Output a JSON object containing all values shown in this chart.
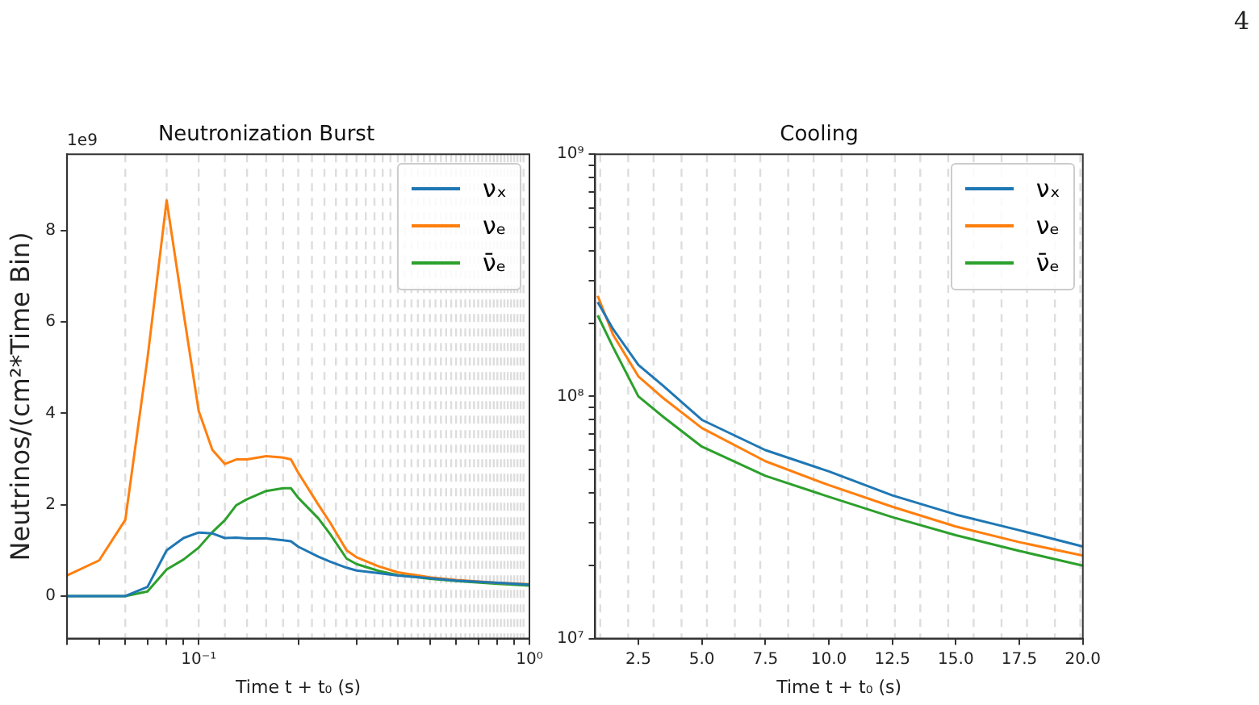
{
  "chart_data": [
    {
      "type": "line",
      "title": "Neutronization Burst",
      "xlabel": "Time t + t₀ (s)",
      "ylabel": "Neutrinos/(cm²*Time Bin)",
      "annotations": [
        "1e9"
      ],
      "log": "x",
      "legend": "top right",
      "x": [
        0.04,
        0.05,
        0.06,
        0.07,
        0.08,
        0.09,
        0.1,
        0.11,
        0.12,
        0.13,
        0.14,
        0.16,
        0.18,
        0.19,
        0.2,
        0.23,
        0.25,
        0.28,
        0.3,
        0.35,
        0.4,
        0.5,
        0.6,
        0.8,
        1.0
      ],
      "series": [
        {
          "name": "νₓ",
          "color": "#1f77b4",
          "values": [
            0,
            0,
            0,
            0.2,
            1.0,
            1.27,
            1.39,
            1.37,
            1.27,
            1.28,
            1.26,
            1.26,
            1.22,
            1.2,
            1.08,
            0.86,
            0.75,
            0.62,
            0.56,
            0.5,
            0.45,
            0.39,
            0.34,
            0.29,
            0.25
          ]
        },
        {
          "name": "νₑ",
          "color": "#ff7f0e",
          "values": [
            0.45,
            0.78,
            1.67,
            5.2,
            8.66,
            6.2,
            4.05,
            3.2,
            2.89,
            2.99,
            2.99,
            3.06,
            3.03,
            2.99,
            2.7,
            2.0,
            1.6,
            1.0,
            0.85,
            0.65,
            0.52,
            0.41,
            0.35,
            0.29,
            0.26
          ]
        },
        {
          "name": "ν̄ₑ",
          "color": "#2ca02c",
          "values": [
            0,
            0,
            0,
            0.1,
            0.58,
            0.8,
            1.06,
            1.4,
            1.66,
            1.99,
            2.12,
            2.3,
            2.36,
            2.36,
            2.15,
            1.7,
            1.35,
            0.82,
            0.7,
            0.55,
            0.46,
            0.38,
            0.33,
            0.27,
            0.23
          ]
        }
      ],
      "xlim": [
        0.04,
        1
      ],
      "xticks": [
        {
          "value": 0.04,
          "label": null
        },
        {
          "value": 0.05,
          "label": null
        },
        {
          "value": 0.06,
          "label": null
        },
        {
          "value": 0.07,
          "label": null
        },
        {
          "value": 0.08,
          "label": null
        },
        {
          "value": 0.09,
          "label": null
        },
        {
          "value": 0.1,
          "label": "10⁻¹"
        },
        {
          "value": 0.2,
          "label": null
        },
        {
          "value": 0.3,
          "label": null
        },
        {
          "value": 0.4,
          "label": null
        },
        {
          "value": 0.5,
          "label": null
        },
        {
          "value": 0.6,
          "label": null
        },
        {
          "value": 0.7,
          "label": null
        },
        {
          "value": 0.8,
          "label": null
        },
        {
          "value": 0.9,
          "label": null
        },
        {
          "value": 1,
          "label": "10⁰"
        }
      ],
      "ylim": [
        -0.93,
        9.67
      ],
      "yticks": [
        0,
        2,
        4,
        6,
        8
      ],
      "ref_lines": [
        {
          "axis": "x",
          "value": 0.06,
          "color": "#dddddd",
          "line_style": "dashed"
        },
        {
          "axis": "x",
          "value": 0.08,
          "color": "#dddddd",
          "line_style": "dashed"
        },
        {
          "axis": "x",
          "value": 0.1,
          "color": "#dddddd",
          "line_style": "dashed"
        },
        {
          "axis": "x",
          "value": 0.12,
          "color": "#dddddd",
          "line_style": "dashed"
        },
        {
          "axis": "x",
          "value": 0.14,
          "color": "#dddddd",
          "line_style": "dashed"
        },
        {
          "axis": "x",
          "value": 0.16,
          "color": "#dddddd",
          "line_style": "dashed"
        },
        {
          "axis": "x",
          "value": 0.18,
          "color": "#dddddd",
          "line_style": "dashed"
        },
        {
          "axis": "x",
          "value": 0.2,
          "color": "#dddddd",
          "line_style": "dashed"
        },
        {
          "axis": "x",
          "value": 0.22,
          "color": "#dddddd",
          "line_style": "dashed"
        },
        {
          "axis": "x",
          "value": 0.24,
          "color": "#dddddd",
          "line_style": "dashed"
        },
        {
          "axis": "x",
          "value": 0.26,
          "color": "#dddddd",
          "line_style": "dashed"
        },
        {
          "axis": "x",
          "value": 0.28,
          "color": "#dddddd",
          "line_style": "dashed"
        },
        {
          "axis": "x",
          "value": 0.3,
          "color": "#dddddd",
          "line_style": "dashed"
        },
        {
          "axis": "x",
          "value": 0.32,
          "color": "#dddddd",
          "line_style": "dashed"
        },
        {
          "axis": "x",
          "value": 0.34,
          "color": "#dddddd",
          "line_style": "dashed"
        },
        {
          "axis": "x",
          "value": 0.36,
          "color": "#dddddd",
          "line_style": "dashed"
        },
        {
          "axis": "x",
          "value": 0.38,
          "color": "#dddddd",
          "line_style": "dashed"
        },
        {
          "axis": "x",
          "value": 0.4,
          "color": "#dddddd",
          "line_style": "dashed"
        },
        {
          "axis": "x",
          "value": 0.42,
          "color": "#dddddd",
          "line_style": "dashed"
        },
        {
          "axis": "x",
          "value": 0.44,
          "color": "#dddddd",
          "line_style": "dashed"
        },
        {
          "axis": "x",
          "value": 0.46,
          "color": "#dddddd",
          "line_style": "dashed"
        },
        {
          "axis": "x",
          "value": 0.48,
          "color": "#dddddd",
          "line_style": "dashed"
        },
        {
          "axis": "x",
          "value": 0.5,
          "color": "#dddddd",
          "line_style": "dashed"
        },
        {
          "axis": "x",
          "value": 0.52,
          "color": "#dddddd",
          "line_style": "dashed"
        },
        {
          "axis": "x",
          "value": 0.54,
          "color": "#dddddd",
          "line_style": "dashed"
        },
        {
          "axis": "x",
          "value": 0.56,
          "color": "#dddddd",
          "line_style": "dashed"
        },
        {
          "axis": "x",
          "value": 0.58,
          "color": "#dddddd",
          "line_style": "dashed"
        },
        {
          "axis": "x",
          "value": 0.6,
          "color": "#dddddd",
          "line_style": "dashed"
        },
        {
          "axis": "x",
          "value": 0.62,
          "color": "#dddddd",
          "line_style": "dashed"
        },
        {
          "axis": "x",
          "value": 0.64,
          "color": "#dddddd",
          "line_style": "dashed"
        },
        {
          "axis": "x",
          "value": 0.66,
          "color": "#dddddd",
          "line_style": "dashed"
        },
        {
          "axis": "x",
          "value": 0.68,
          "color": "#dddddd",
          "line_style": "dashed"
        },
        {
          "axis": "x",
          "value": 0.7,
          "color": "#dddddd",
          "line_style": "dashed"
        },
        {
          "axis": "x",
          "value": 0.72,
          "color": "#dddddd",
          "line_style": "dashed"
        },
        {
          "axis": "x",
          "value": 0.74,
          "color": "#dddddd",
          "line_style": "dashed"
        },
        {
          "axis": "x",
          "value": 0.76,
          "color": "#dddddd",
          "line_style": "dashed"
        },
        {
          "axis": "x",
          "value": 0.78,
          "color": "#dddddd",
          "line_style": "dashed"
        },
        {
          "axis": "x",
          "value": 0.8,
          "color": "#dddddd",
          "line_style": "dashed"
        },
        {
          "axis": "x",
          "value": 0.82,
          "color": "#dddddd",
          "line_style": "dashed"
        },
        {
          "axis": "x",
          "value": 0.84,
          "color": "#dddddd",
          "line_style": "dashed"
        },
        {
          "axis": "x",
          "value": 0.86,
          "color": "#dddddd",
          "line_style": "dashed"
        },
        {
          "axis": "x",
          "value": 0.88,
          "color": "#dddddd",
          "line_style": "dashed"
        },
        {
          "axis": "x",
          "value": 0.9,
          "color": "#dddddd",
          "line_style": "dashed"
        },
        {
          "axis": "x",
          "value": 0.92,
          "color": "#dddddd",
          "line_style": "dashed"
        },
        {
          "axis": "x",
          "value": 0.94,
          "color": "#dddddd",
          "line_style": "dashed"
        },
        {
          "axis": "x",
          "value": 0.96,
          "color": "#dddddd",
          "line_style": "dashed"
        }
      ]
    },
    {
      "type": "line",
      "title": "Cooling",
      "xlabel": "Time t + t₀ (s)",
      "annotations": [
        "4"
      ],
      "log": "y",
      "legend": "top right",
      "x": [
        0.9,
        1.5,
        2.5,
        3.5,
        5,
        7.5,
        10,
        12.5,
        15,
        17.5,
        20
      ],
      "series": [
        {
          "name": "νₓ",
          "color": "#1f77b4",
          "values": [
            245000000.0,
            190000000.0,
            135000000.0,
            110000000.0,
            80000000.0,
            60000000.0,
            49000000.0,
            39000000.0,
            32500000.0,
            28000000.0,
            24000000.0
          ]
        },
        {
          "name": "νₑ",
          "color": "#ff7f0e",
          "values": [
            260000000.0,
            180000000.0,
            121000000.0,
            98000000.0,
            74000000.0,
            54000000.0,
            43000000.0,
            35000000.0,
            29000000.0,
            25000000.0,
            22000000.0
          ]
        },
        {
          "name": "ν̄ₑ",
          "color": "#2ca02c",
          "values": [
            216000000.0,
            160000000.0,
            100000000.0,
            82000000.0,
            62000000.0,
            47000000.0,
            38500000.0,
            31700000.0,
            26700000.0,
            23000000.0,
            20000000.0
          ]
        }
      ],
      "xlim": [
        0.8,
        20
      ],
      "xticks": [
        {
          "value": 2.5,
          "label": "2.5"
        },
        {
          "value": 5,
          "label": "5.0"
        },
        {
          "value": 7.5,
          "label": "7.5"
        },
        {
          "value": 10,
          "label": "10.0"
        },
        {
          "value": 12.5,
          "label": "12.5"
        },
        {
          "value": 15,
          "label": "15.0"
        },
        {
          "value": 17.5,
          "label": "17.5"
        },
        {
          "value": 20,
          "label": "20.0"
        }
      ],
      "ylim": [
        10000000.0,
        1000000000.0
      ],
      "yticks": [
        {
          "value": 10000000.0,
          "label": "10⁷"
        },
        {
          "value": 20000000.0,
          "label": null
        },
        {
          "value": 30000000.0,
          "label": null
        },
        {
          "value": 40000000.0,
          "label": null
        },
        {
          "value": 50000000.0,
          "label": null
        },
        {
          "value": 60000000.0,
          "label": null
        },
        {
          "value": 70000000.0,
          "label": null
        },
        {
          "value": 80000000.0,
          "label": null
        },
        {
          "value": 90000000.0,
          "label": null
        },
        {
          "value": 100000000.0,
          "label": "10⁸"
        },
        {
          "value": 200000000.0,
          "label": null
        },
        {
          "value": 300000000.0,
          "label": null
        },
        {
          "value": 400000000.0,
          "label": null
        },
        {
          "value": 500000000.0,
          "label": null
        },
        {
          "value": 600000000.0,
          "label": null
        },
        {
          "value": 700000000.0,
          "label": null
        },
        {
          "value": 800000000.0,
          "label": null
        },
        {
          "value": 900000000.0,
          "label": null
        },
        {
          "value": 1000000000.0,
          "label": "10⁹"
        }
      ],
      "ref_lines": [
        {
          "axis": "x",
          "value": 1.0,
          "color": "#dddddd",
          "line_style": "dashed"
        },
        {
          "axis": "x",
          "value": 2.1,
          "color": "#dddddd",
          "line_style": "dashed"
        },
        {
          "axis": "x",
          "value": 3.1,
          "color": "#dddddd",
          "line_style": "dashed"
        },
        {
          "axis": "x",
          "value": 4.2,
          "color": "#dddddd",
          "line_style": "dashed"
        },
        {
          "axis": "x",
          "value": 5.2,
          "color": "#dddddd",
          "line_style": "dashed"
        },
        {
          "axis": "x",
          "value": 6.3,
          "color": "#dddddd",
          "line_style": "dashed"
        },
        {
          "axis": "x",
          "value": 7.3,
          "color": "#dddddd",
          "line_style": "dashed"
        },
        {
          "axis": "x",
          "value": 8.4,
          "color": "#dddddd",
          "line_style": "dashed"
        },
        {
          "axis": "x",
          "value": 9.4,
          "color": "#dddddd",
          "line_style": "dashed"
        },
        {
          "axis": "x",
          "value": 10.5,
          "color": "#dddddd",
          "line_style": "dashed"
        },
        {
          "axis": "x",
          "value": 11.5,
          "color": "#dddddd",
          "line_style": "dashed"
        },
        {
          "axis": "x",
          "value": 12.6,
          "color": "#dddddd",
          "line_style": "dashed"
        },
        {
          "axis": "x",
          "value": 13.6,
          "color": "#dddddd",
          "line_style": "dashed"
        },
        {
          "axis": "x",
          "value": 14.7,
          "color": "#dddddd",
          "line_style": "dashed"
        },
        {
          "axis": "x",
          "value": 15.7,
          "color": "#dddddd",
          "line_style": "dashed"
        },
        {
          "axis": "x",
          "value": 16.8,
          "color": "#dddddd",
          "line_style": "dashed"
        },
        {
          "axis": "x",
          "value": 17.8,
          "color": "#dddddd",
          "line_style": "dashed"
        },
        {
          "axis": "x",
          "value": 18.9,
          "color": "#dddddd",
          "line_style": "dashed"
        },
        {
          "axis": "x",
          "value": 19.9,
          "color": "#dddddd",
          "line_style": "dashed"
        }
      ]
    }
  ]
}
